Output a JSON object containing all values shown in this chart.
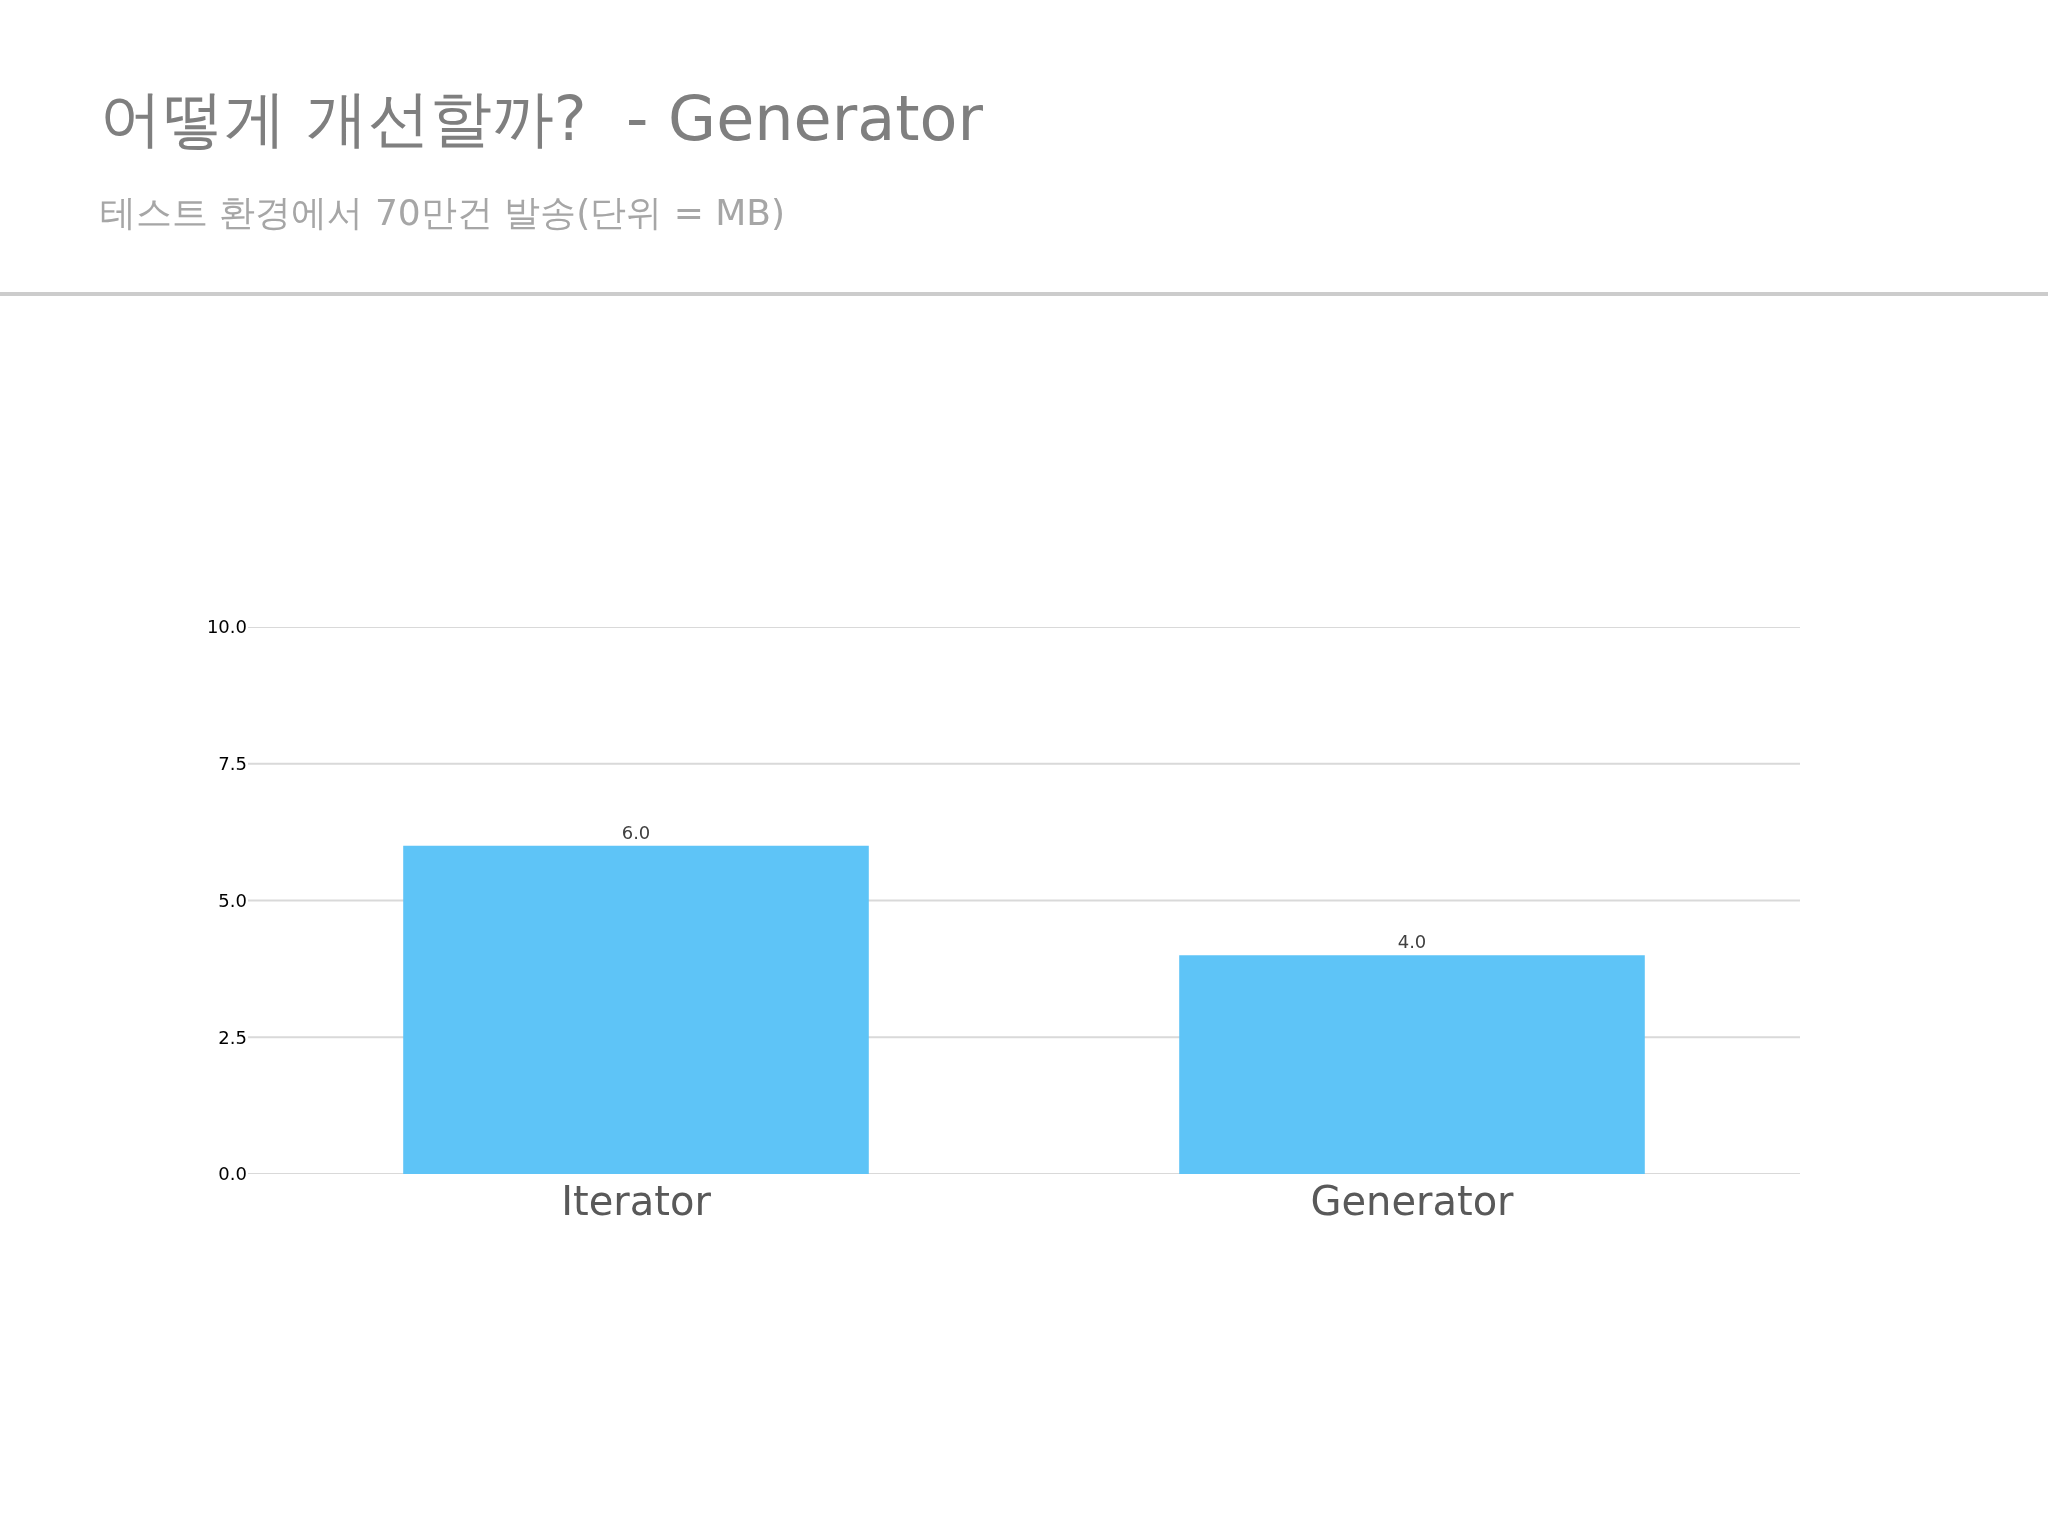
{
  "chart_data": {
    "type": "bar",
    "title": "어떻게 개선할까?  - Generator",
    "subtitle": "테스트 환경에서 70만건 발송(단위 = MB)",
    "categories": [
      "Iterator",
      "Generator"
    ],
    "values": [
      6.0,
      4.0
    ],
    "value_labels": [
      "6.0",
      "4.0"
    ],
    "color": "#5ec4f7",
    "ylim": [
      0,
      10
    ],
    "yticks": [
      {
        "value": 0,
        "label": "0.0"
      },
      {
        "value": 2.5,
        "label": "2.5"
      },
      {
        "value": 5,
        "label": "5.0"
      },
      {
        "value": 7.5,
        "label": "7.5"
      },
      {
        "value": 10,
        "label": "10.0"
      }
    ],
    "grid": "y"
  }
}
